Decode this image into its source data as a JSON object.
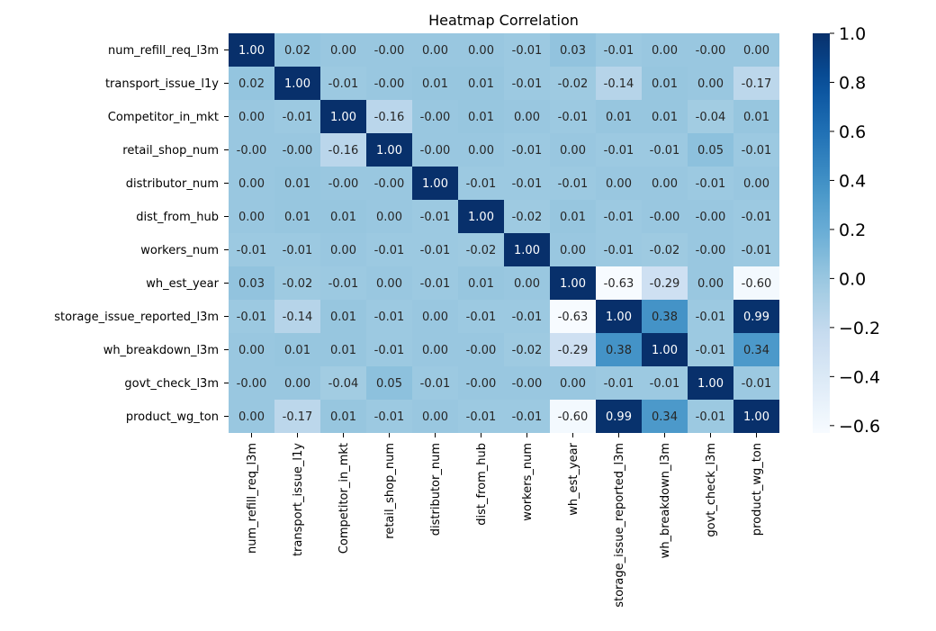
{
  "chart_data": {
    "type": "heatmap",
    "title": "Heatmap Correlation",
    "row_labels": [
      "num_refill_req_l3m",
      "transport_issue_l1y",
      "Competitor_in_mkt",
      "retail_shop_num",
      "distributor_num",
      "dist_from_hub",
      "workers_num",
      "wh_est_year",
      "storage_issue_reported_l3m",
      "wh_breakdown_l3m",
      "govt_check_l3m",
      "product_wg_ton"
    ],
    "col_labels": [
      "num_refill_req_l3m",
      "transport_issue_l1y",
      "Competitor_in_mkt",
      "retail_shop_num",
      "distributor_num",
      "dist_from_hub",
      "workers_num",
      "wh_est_year",
      "storage_issue_reported_l3m",
      "wh_breakdown_l3m",
      "govt_check_l3m",
      "product_wg_ton"
    ],
    "values": [
      [
        "1.00",
        "0.02",
        "0.00",
        "-0.00",
        "0.00",
        "0.00",
        "-0.01",
        "0.03",
        "-0.01",
        "0.00",
        "-0.00",
        "0.00"
      ],
      [
        "0.02",
        "1.00",
        "-0.01",
        "-0.00",
        "0.01",
        "0.01",
        "-0.01",
        "-0.02",
        "-0.14",
        "0.01",
        "0.00",
        "-0.17"
      ],
      [
        "0.00",
        "-0.01",
        "1.00",
        "-0.16",
        "-0.00",
        "0.01",
        "0.00",
        "-0.01",
        "0.01",
        "0.01",
        "-0.04",
        "0.01"
      ],
      [
        "-0.00",
        "-0.00",
        "-0.16",
        "1.00",
        "-0.00",
        "0.00",
        "-0.01",
        "0.00",
        "-0.01",
        "-0.01",
        "0.05",
        "-0.01"
      ],
      [
        "0.00",
        "0.01",
        "-0.00",
        "-0.00",
        "1.00",
        "-0.01",
        "-0.01",
        "-0.01",
        "0.00",
        "0.00",
        "-0.01",
        "0.00"
      ],
      [
        "0.00",
        "0.01",
        "0.01",
        "0.00",
        "-0.01",
        "1.00",
        "-0.02",
        "0.01",
        "-0.01",
        "-0.00",
        "-0.00",
        "-0.01"
      ],
      [
        "-0.01",
        "-0.01",
        "0.00",
        "-0.01",
        "-0.01",
        "-0.02",
        "1.00",
        "0.00",
        "-0.01",
        "-0.02",
        "-0.00",
        "-0.01"
      ],
      [
        "0.03",
        "-0.02",
        "-0.01",
        "0.00",
        "-0.01",
        "0.01",
        "0.00",
        "1.00",
        "-0.63",
        "-0.29",
        "0.00",
        "-0.60"
      ],
      [
        "-0.01",
        "-0.14",
        "0.01",
        "-0.01",
        "0.00",
        "-0.01",
        "-0.01",
        "-0.63",
        "1.00",
        "0.38",
        "-0.01",
        "0.99"
      ],
      [
        "0.00",
        "0.01",
        "0.01",
        "-0.01",
        "0.00",
        "-0.00",
        "-0.02",
        "-0.29",
        "0.38",
        "1.00",
        "-0.01",
        "0.34"
      ],
      [
        "-0.00",
        "0.00",
        "-0.04",
        "0.05",
        "-0.01",
        "-0.00",
        "-0.00",
        "0.00",
        "-0.01",
        "-0.01",
        "1.00",
        "-0.01"
      ],
      [
        "0.00",
        "-0.17",
        "0.01",
        "-0.01",
        "0.00",
        "-0.01",
        "-0.01",
        "-0.60",
        "0.99",
        "0.34",
        "-0.01",
        "1.00"
      ]
    ],
    "colorbar": {
      "min": -0.63,
      "max": 1.0,
      "ticks": [
        "1.0",
        "0.8",
        "0.6",
        "0.4",
        "0.2",
        "0.0",
        "−0.2",
        "−0.4",
        "−0.6"
      ],
      "tick_values": [
        1.0,
        0.8,
        0.6,
        0.4,
        0.2,
        0.0,
        -0.2,
        -0.4,
        -0.6
      ]
    },
    "colormap": "Blues",
    "grid": false
  }
}
